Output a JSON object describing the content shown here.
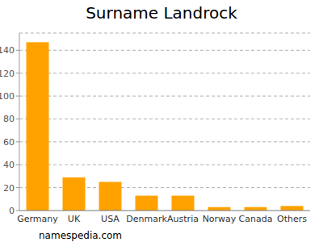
{
  "chart_data": {
    "type": "bar",
    "title": "Surname Landrock",
    "categories": [
      "Germany",
      "UK",
      "USA",
      "Denmark",
      "Austria",
      "Norway",
      "Canada",
      "Others"
    ],
    "values": [
      147,
      29,
      25,
      13,
      13,
      3,
      3,
      4
    ],
    "color": "#ffa200",
    "ylim": [
      0,
      155
    ],
    "yticks": [
      0,
      20,
      40,
      60,
      80,
      100,
      120,
      140
    ],
    "grid": true,
    "source": "namespedia.com"
  }
}
